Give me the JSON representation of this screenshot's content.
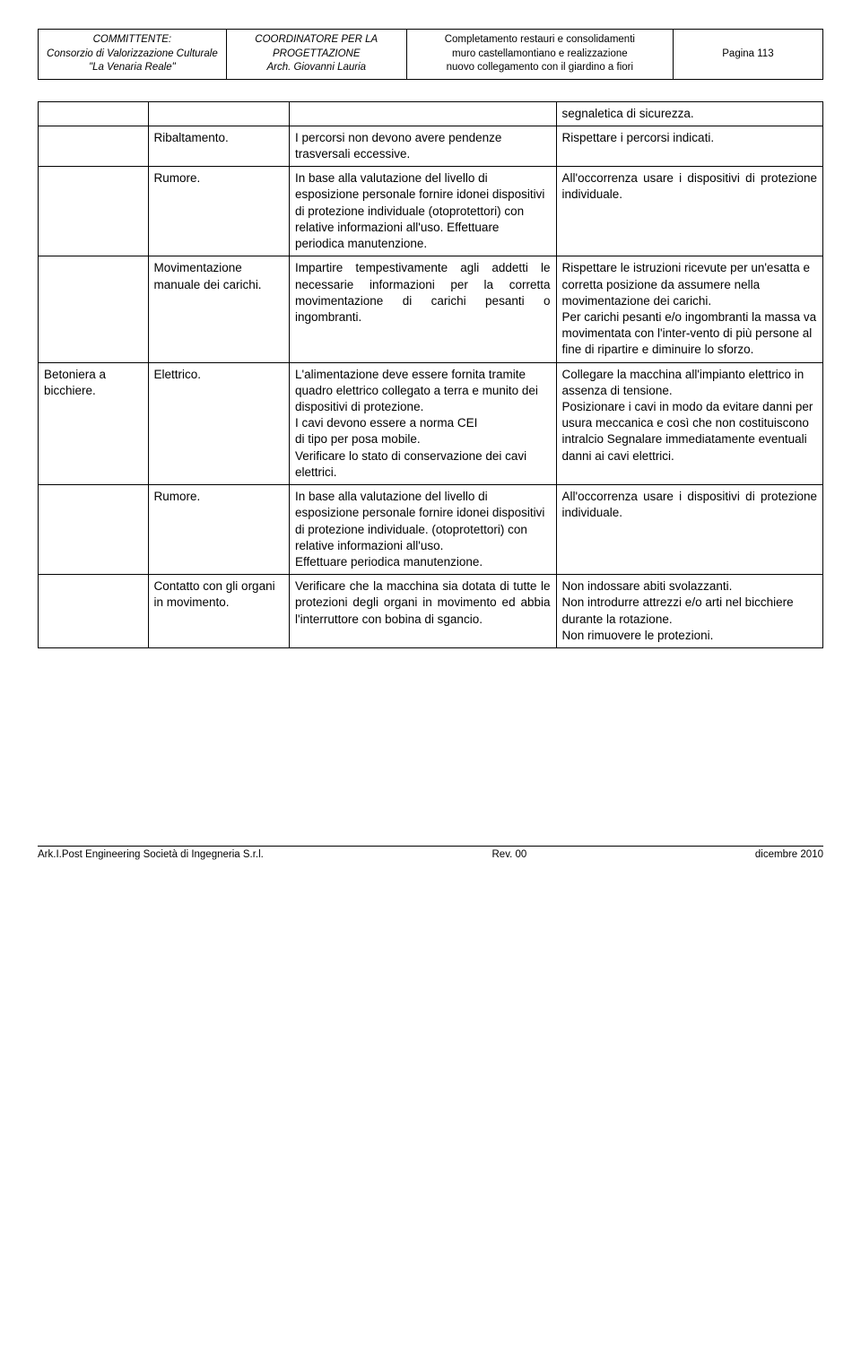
{
  "header": {
    "col1": {
      "l1": "COMMITTENTE:",
      "l2": "Consorzio di Valorizzazione Culturale",
      "l3": "\"La Venaria Reale\""
    },
    "col2": {
      "l1": "COORDINATORE PER LA",
      "l2": "PROGETTAZIONE",
      "l3": "Arch. Giovanni Lauria"
    },
    "col3": {
      "l1": "Completamento restauri e consolidamenti",
      "l2": "muro castellamontiano e realizzazione",
      "l3": "nuovo collegamento con il giardino a fiori"
    },
    "col4": "Pagina 113"
  },
  "rows": [
    {
      "a": "",
      "b": "",
      "c": "",
      "d": "segnaletica di sicurezza."
    },
    {
      "a": "",
      "b": "Ribaltamento.",
      "c": "I percorsi non devono avere pendenze  trasversali eccessive.",
      "d": "Rispettare i percorsi indicati."
    },
    {
      "a": "",
      "b": "Rumore.",
      "c": "In base alla valutazione del livello di esposizione personale fornire idonei dispositivi di protezione individuale (otoprotettori) con relative informazioni all'uso. Effettuare periodica manutenzione.",
      "d": "All'occorrenza usare i dispositivi di protezione individuale."
    },
    {
      "a": "",
      "b": "Movimentazione manuale dei carichi.",
      "c": "Impartire tempestivamente agli addetti le necessarie informazioni per la corretta movimentazione di carichi pesanti o ingombranti.",
      "d": "Rispettare le istruzioni ricevute per un'esatta e corretta posizione da assumere nella movimentazione dei carichi.\nPer carichi pesanti e/o ingombranti la massa va movimentata con l'inter-vento di più persone al fine di ripartire e diminuire lo sforzo."
    },
    {
      "a": "Betoniera a bicchiere.",
      "b": "Elettrico.",
      "c": "L'alimentazione deve essere fornita tramite quadro elettrico collegato a terra e munito dei dispositivi di protezione.\nI cavi devono essere a norma CEI\ndi tipo per posa mobile.\nVerificare lo stato di conservazione dei cavi elettrici.",
      "d": "Collegare la macchina all'impianto elettrico in assenza di tensione.\nPosizionare i cavi in modo da evitare danni per usura meccanica e così che non costituiscono intralcio Segnalare immediatamente eventuali danni ai cavi elettrici."
    },
    {
      "a": "",
      "b": "Rumore.",
      "c": "In base alla valutazione del livello di esposizione personale fornire idonei dispositivi di protezione individuale. (otoprotettori) con relative informazioni all'uso.\nEffettuare periodica manutenzione.",
      "d": "All'occorrenza usare i dispositivi di protezione individuale."
    },
    {
      "a": "",
      "b": "Contatto con gli organi in movimento.",
      "c": "Verificare che la macchina sia dotata di tutte le protezioni degli organi in movimento ed abbia l'interruttore con bobina di sgancio.",
      "d": "Non indossare abiti svolazzanti.\nNon introdurre attrezzi e/o arti nel bicchiere durante la rotazione.\nNon rimuovere le protezioni."
    }
  ],
  "justifyC": [
    false,
    false,
    false,
    true,
    false,
    false,
    true
  ],
  "justifyD": [
    false,
    true,
    true,
    false,
    false,
    true,
    false
  ],
  "footer": {
    "left": "Ark.I.Post Engineering  Società di Ingegneria S.r.l.",
    "mid": "Rev. 00",
    "right": "dicembre  2010"
  },
  "colors": {
    "text": "#000000",
    "border": "#000000",
    "bg": "#ffffff"
  }
}
